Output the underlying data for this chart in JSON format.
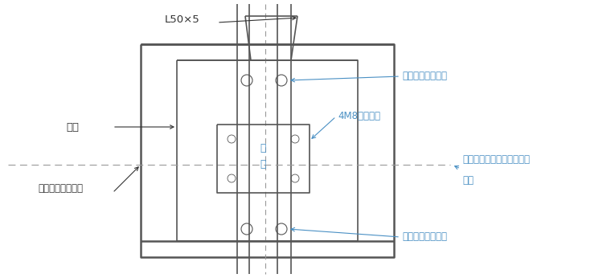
{
  "bg_color": "#ffffff",
  "line_color": "#555555",
  "text_color_blue": "#4a90c4",
  "text_color_dark": "#333333",
  "dashed_color": "#999999",
  "labels": {
    "L50x5": "L50×5",
    "drill_top": "钒孔后用钉子固定",
    "mufang": "木方",
    "4M8": "4M8固定鐵件",
    "bujian1": "埋",
    "bujian2": "件",
    "drill_bot": "钒孔后用钉子固定",
    "foundation": "硜设备基础上表面",
    "axis_align1": "木方上所弹轴线与埋件轴线",
    "axis_align2": "重合"
  }
}
